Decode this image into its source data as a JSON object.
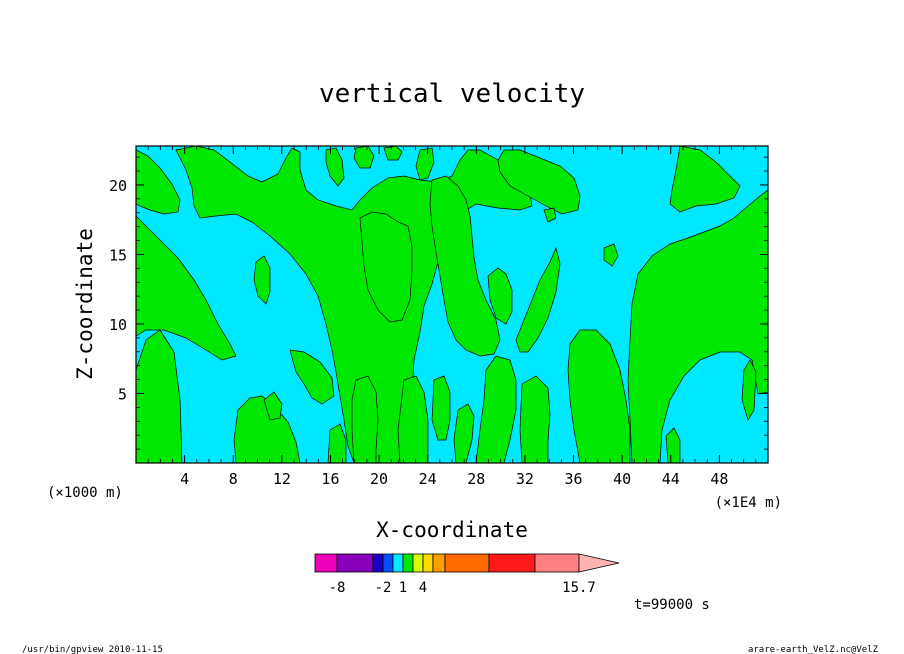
{
  "chart_data": {
    "type": "heatmap",
    "title": "vertical velocity",
    "xlabel": "X-coordinate",
    "ylabel": "Z-coordinate",
    "x_unit_left": "(×1000 m)",
    "x_unit_right": "(×1E4 m)",
    "xlim": [
      0,
      52
    ],
    "ylim": [
      0,
      22.8
    ],
    "x_ticks": [
      4,
      8,
      12,
      16,
      20,
      24,
      28,
      32,
      36,
      40,
      44,
      48
    ],
    "x_tick_labels": [
      "4",
      "8",
      "12",
      "16",
      "20",
      "24",
      "28",
      "32",
      "36",
      "40",
      "44",
      "48"
    ],
    "y_ticks": [
      5,
      10,
      15,
      20
    ],
    "y_tick_labels": [
      "5",
      "10",
      "15",
      "20"
    ],
    "field_colors": {
      "negative": "#00e8ff",
      "positive": "#00e800"
    },
    "colorbar": {
      "colors": [
        "#ee00bb",
        "#8800bb",
        "#1a00c8",
        "#0050ff",
        "#00e8ff",
        "#00e800",
        "#d8ff00",
        "#ffd800",
        "#ffa000",
        "#ff6a00",
        "#ff1a1a",
        "#ff8080",
        "#ffb3b3"
      ],
      "tick_labels": [
        "-8",
        "-2",
        "1",
        "4",
        "15.7"
      ],
      "tick_boundaries": [
        1,
        3,
        5,
        7,
        12
      ]
    },
    "time_label": "t=99000 s"
  },
  "footer": {
    "left": "/usr/bin/gpview   2010-11-15",
    "right": "arare-earth_VelZ.nc@VelZ"
  }
}
